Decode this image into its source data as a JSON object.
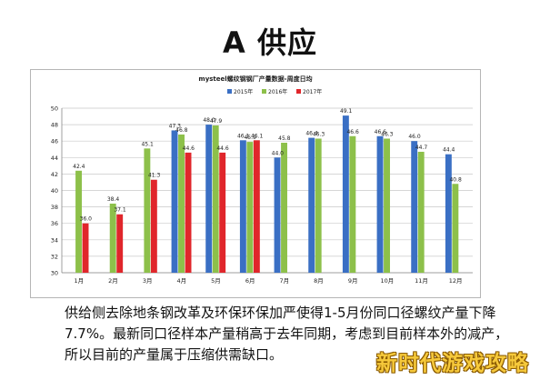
{
  "slide": {
    "title": "A 供应",
    "caption_lines": [
      "供给侧去除地条钢改革及环保环保加严使得1-5月份同口径螺纹产量下降",
      "7.7%。最新同口径样本产量稍高于去年同期，考虑到目前样本外的减产，",
      "所以目前的产量属于压缩供需缺口。"
    ],
    "watermark": "新时代游戏攻略"
  },
  "colors": {
    "s2015": "#3a6fc4",
    "s2016": "#8dc04a",
    "s2017": "#e0262b"
  },
  "chart_data": {
    "type": "bar",
    "title": "mysteel螺纹钢钢厂产量数据-周度日均",
    "categories": [
      "1月",
      "2月",
      "3月",
      "4月",
      "5月",
      "6月",
      "7月",
      "8月",
      "9月",
      "10月",
      "11月",
      "12月"
    ],
    "series": [
      {
        "name": "2015年",
        "values": [
          null,
          null,
          null,
          47.3,
          48.0,
          46.1,
          44.0,
          46.4,
          49.1,
          46.6,
          46.0,
          44.4
        ]
      },
      {
        "name": "2016年",
        "values": [
          42.4,
          38.4,
          45.1,
          46.8,
          47.9,
          45.9,
          45.8,
          46.3,
          46.6,
          46.3,
          44.7,
          40.8
        ]
      },
      {
        "name": "2017年",
        "values": [
          36.0,
          37.1,
          41.3,
          44.6,
          44.6,
          46.1,
          null,
          null,
          null,
          null,
          null,
          null
        ]
      }
    ],
    "ylim": [
      30,
      50
    ],
    "yticks": [
      30,
      32,
      34,
      36,
      38,
      40,
      42,
      44,
      46,
      48,
      50
    ],
    "grid": true,
    "legend_position": "top-right"
  }
}
